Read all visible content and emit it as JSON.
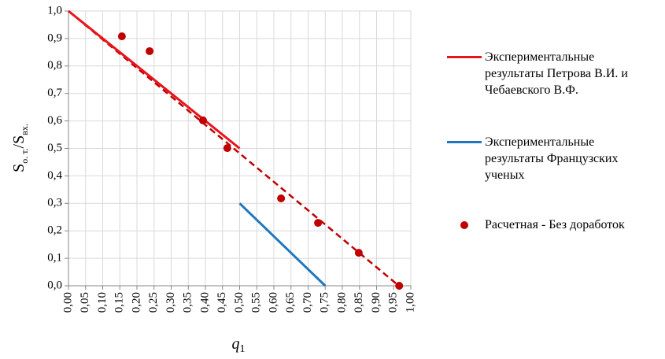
{
  "chart_data": {
    "type": "line",
    "xlabel": [
      "q",
      "1"
    ],
    "ylabel": [
      "S",
      "о. т.",
      "/S",
      "вх."
    ],
    "xlim": [
      0,
      1
    ],
    "ylim": [
      0,
      1
    ],
    "grid": true,
    "legend": "right",
    "xticks": [
      {
        "value": 0,
        "label": "0,00"
      },
      {
        "value": 0.05,
        "label": "0,05"
      },
      {
        "value": 0.1,
        "label": "0,10"
      },
      {
        "value": 0.15,
        "label": "0,15"
      },
      {
        "value": 0.2,
        "label": "0,20"
      },
      {
        "value": 0.25,
        "label": "0,25"
      },
      {
        "value": 0.3,
        "label": "0,30"
      },
      {
        "value": 0.35,
        "label": "0,35"
      },
      {
        "value": 0.4,
        "label": "0,40"
      },
      {
        "value": 0.45,
        "label": "0,45"
      },
      {
        "value": 0.5,
        "label": "0,50"
      },
      {
        "value": 0.55,
        "label": "0,55"
      },
      {
        "value": 0.6,
        "label": "0,60"
      },
      {
        "value": 0.65,
        "label": "0,65"
      },
      {
        "value": 0.7,
        "label": "0,70"
      },
      {
        "value": 0.75,
        "label": "0,75"
      },
      {
        "value": 0.8,
        "label": "0,80"
      },
      {
        "value": 0.85,
        "label": "0,85"
      },
      {
        "value": 0.9,
        "label": "0,90"
      },
      {
        "value": 0.95,
        "label": "0,95"
      },
      {
        "value": 1,
        "label": "1,00"
      }
    ],
    "yticks": [
      {
        "value": 0,
        "label": "0,0"
      },
      {
        "value": 0.1,
        "label": "0,1"
      },
      {
        "value": 0.2,
        "label": "0,2"
      },
      {
        "value": 0.3,
        "label": "0,3"
      },
      {
        "value": 0.4,
        "label": "0,4"
      },
      {
        "value": 0.5,
        "label": "0,5"
      },
      {
        "value": 0.6,
        "label": "0,6"
      },
      {
        "value": 0.7,
        "label": "0,7"
      },
      {
        "value": 0.8,
        "label": "0,8"
      },
      {
        "value": 0.9,
        "label": "0,9"
      },
      {
        "value": 1,
        "label": "1,0"
      }
    ],
    "trend": {
      "color": "#c00000",
      "dashed": true,
      "x": [
        0,
        0.965
      ],
      "values": [
        1,
        0
      ]
    },
    "series": [
      {
        "name": "Экспериментальные\nрезультаты Петрова В.И. и\nЧебаевского В.Ф.",
        "color": "#e8141b",
        "kind": "line",
        "x": [
          0,
          0.5
        ],
        "values": [
          1,
          0.5
        ]
      },
      {
        "name": "Экспериментальные\nрезультаты Французских\nученых",
        "color": "#1f77c0",
        "kind": "line",
        "x": [
          0.5,
          0.75
        ],
        "values": [
          0.3,
          0
        ]
      },
      {
        "name": "Расчетная - Без доработок",
        "color": "#c00000",
        "kind": "scatter",
        "x": [
          0.156,
          0.237,
          0.393,
          0.464,
          0.621,
          0.729,
          0.848,
          0.966
        ],
        "values": [
          0.908,
          0.854,
          0.602,
          0.501,
          0.318,
          0.229,
          0.12,
          0
        ]
      }
    ]
  }
}
